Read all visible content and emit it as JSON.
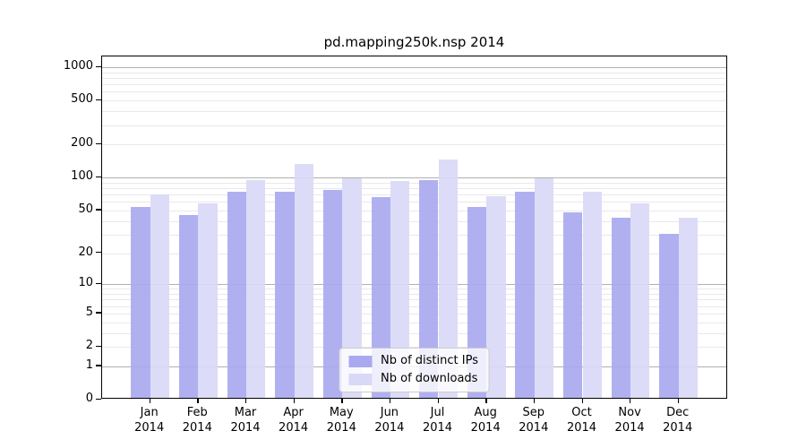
{
  "title": "pd.mapping250k.nsp 2014",
  "chart_data": {
    "type": "bar",
    "title": "pd.mapping250k.nsp 2014",
    "y_scale": "log1p",
    "categories": [
      "Jan",
      "Feb",
      "Mar",
      "Apr",
      "May",
      "Jun",
      "Jul",
      "Aug",
      "Sep",
      "Oct",
      "Nov",
      "Dec"
    ],
    "year": "2014",
    "series": [
      {
        "name": "Nb of distinct IPs",
        "color": "#a9a9f0",
        "values": [
          52,
          44,
          71,
          71,
          74,
          64,
          92,
          52,
          72,
          46,
          41,
          29
        ]
      },
      {
        "name": "Nb of downloads",
        "color": "#d9d9f7",
        "values": [
          67,
          56,
          91,
          128,
          95,
          89,
          140,
          65,
          95,
          71,
          56,
          41
        ]
      }
    ],
    "yticks": [
      0,
      1,
      2,
      5,
      10,
      20,
      50,
      100,
      200,
      500,
      1000
    ],
    "major_grid_values": [
      1,
      10,
      100,
      1000
    ],
    "ylim": [
      0,
      1250
    ],
    "grid": true,
    "legend_position": "lower center",
    "colors": {
      "major_grid": "#b0b0b0",
      "minor_grid": "#e9e9e9",
      "axis": "#000000",
      "legend_border": "#cccccc"
    }
  }
}
